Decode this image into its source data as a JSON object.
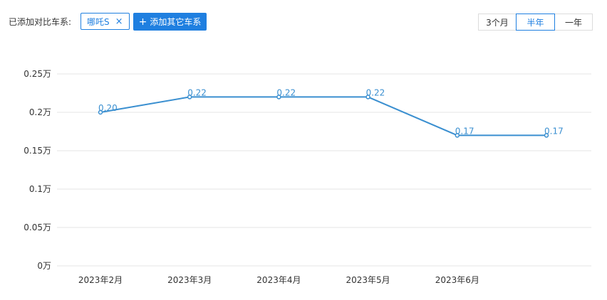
{
  "toolbar": {
    "compare_label": "已添加对比车系:",
    "tag_label": "哪吒S",
    "tag_close": "×",
    "add_plus": "+",
    "add_label": "添加其它车系",
    "ranges": [
      "3个月",
      "半年",
      "一年"
    ],
    "active_range": "半年"
  },
  "colors": {
    "accent": "#1f7fe0",
    "series_line": "#3a8fd0",
    "grid": "#e6e6e6"
  },
  "chart_data": {
    "type": "line",
    "categories": [
      "2023年2月",
      "2023年3月",
      "2023年4月",
      "2023年5月",
      "2023年6月",
      ""
    ],
    "series": [
      {
        "values": [
          0.2,
          0.22,
          0.22,
          0.22,
          0.17,
          0.17
        ]
      }
    ],
    "data_labels": [
      "0.20",
      "0.22",
      "0.22",
      "0.22",
      "0.17",
      "0.17"
    ],
    "y_ticks": [
      "0万",
      "0.05万",
      "0.1万",
      "0.15万",
      "0.2万",
      "0.25万"
    ],
    "ylim": [
      0,
      0.25
    ],
    "grid": true,
    "title": "",
    "xlabel": "",
    "ylabel": ""
  }
}
